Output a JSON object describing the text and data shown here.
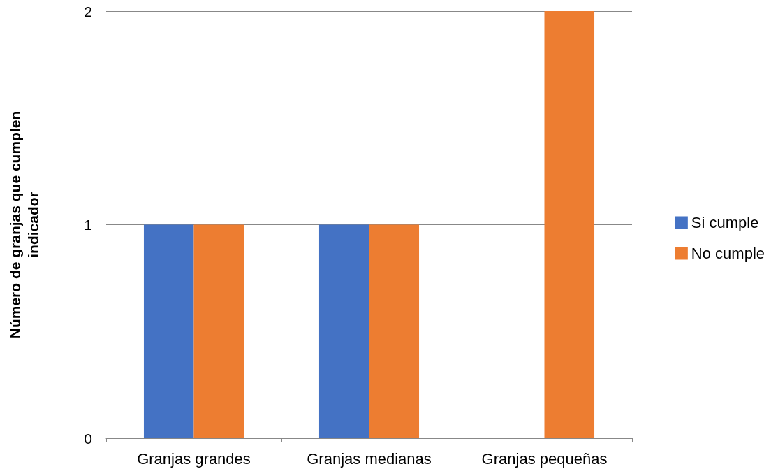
{
  "chart_data": {
    "type": "bar",
    "ylabel": "Número de granjas que cumplen\nindicador",
    "categories": [
      "Granjas grandes",
      "Granjas medianas",
      "Granjas pequeñas"
    ],
    "series": [
      {
        "name": "Si cumple",
        "color": "#4472c4",
        "values": [
          1,
          1,
          0
        ]
      },
      {
        "name": "No cumple",
        "color": "#ed7d31",
        "values": [
          1,
          1,
          2
        ]
      }
    ],
    "ylim": [
      0,
      2
    ],
    "yticks": [
      0,
      1,
      2
    ],
    "grid": "y",
    "legend": "right"
  }
}
